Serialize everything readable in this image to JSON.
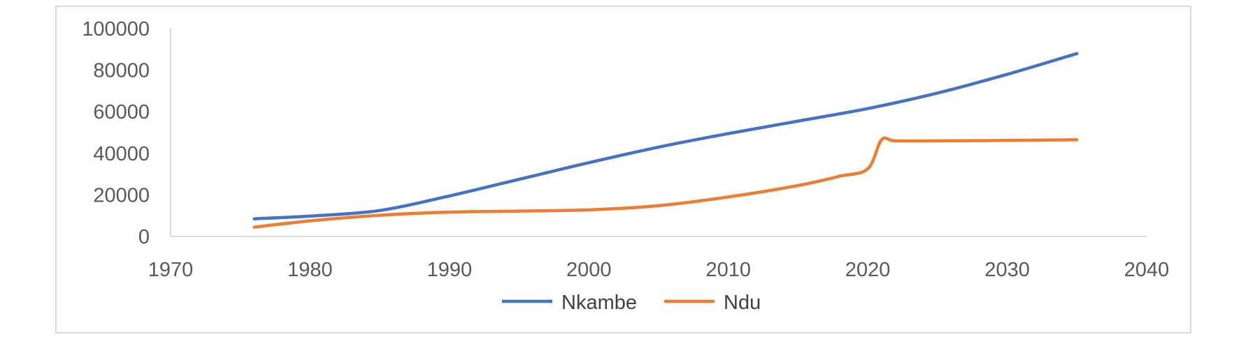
{
  "chart_data": {
    "type": "line",
    "title": "",
    "xlabel": "",
    "ylabel": "",
    "xlim": [
      1970,
      2040
    ],
    "ylim": [
      0,
      100000
    ],
    "x_ticks": [
      1970,
      1980,
      1990,
      2000,
      2010,
      2020,
      2030,
      2040
    ],
    "y_ticks": [
      0,
      20000,
      40000,
      60000,
      80000,
      100000
    ],
    "grid": false,
    "legend_position": "bottom",
    "series": [
      {
        "name": "Nkambe",
        "color": "#4472c4",
        "points": [
          [
            1976,
            8500
          ],
          [
            1980,
            9800
          ],
          [
            1985,
            12500
          ],
          [
            1990,
            19500
          ],
          [
            1995,
            27500
          ],
          [
            2000,
            35500
          ],
          [
            2005,
            43000
          ],
          [
            2010,
            49500
          ],
          [
            2015,
            55500
          ],
          [
            2020,
            61500
          ],
          [
            2025,
            69000
          ],
          [
            2030,
            78000
          ],
          [
            2035,
            88000
          ]
        ]
      },
      {
        "name": "Ndu",
        "color": "#ed7d31",
        "points": [
          [
            1976,
            4500
          ],
          [
            1980,
            7500
          ],
          [
            1985,
            10200
          ],
          [
            1990,
            11700
          ],
          [
            1995,
            12200
          ],
          [
            2000,
            12800
          ],
          [
            2005,
            14800
          ],
          [
            2010,
            19000
          ],
          [
            2015,
            24500
          ],
          [
            2018,
            29000
          ],
          [
            2020,
            32500
          ],
          [
            2021,
            46500
          ],
          [
            2022,
            46000
          ],
          [
            2025,
            46000
          ],
          [
            2030,
            46200
          ],
          [
            2035,
            46500
          ]
        ]
      }
    ]
  }
}
